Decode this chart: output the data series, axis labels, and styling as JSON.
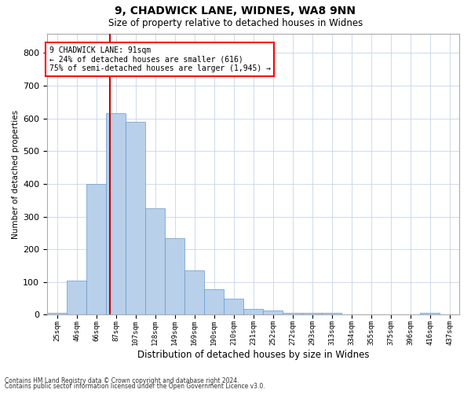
{
  "title1": "9, CHADWICK LANE, WIDNES, WA8 9NN",
  "title2": "Size of property relative to detached houses in Widnes",
  "xlabel": "Distribution of detached houses by size in Widnes",
  "ylabel": "Number of detached properties",
  "footnote1": "Contains HM Land Registry data © Crown copyright and database right 2024.",
  "footnote2": "Contains public sector information licensed under the Open Government Licence v3.0.",
  "annotation_line1": "9 CHADWICK LANE: 91sqm",
  "annotation_line2": "← 24% of detached houses are smaller (616)",
  "annotation_line3": "75% of semi-detached houses are larger (1,945) →",
  "bar_labels": [
    "25sqm",
    "46sqm",
    "66sqm",
    "87sqm",
    "107sqm",
    "128sqm",
    "149sqm",
    "169sqm",
    "190sqm",
    "210sqm",
    "231sqm",
    "252sqm",
    "272sqm",
    "293sqm",
    "313sqm",
    "334sqm",
    "355sqm",
    "375sqm",
    "396sqm",
    "416sqm",
    "437sqm"
  ],
  "bar_heights": [
    5,
    105,
    400,
    615,
    590,
    325,
    235,
    135,
    78,
    50,
    18,
    13,
    5,
    5,
    5,
    0,
    0,
    0,
    0,
    5,
    0
  ],
  "bar_color": "#b8d0ea",
  "bar_edge_color": "#6699cc",
  "vline_color": "#cc0000",
  "ylim": [
    0,
    860
  ],
  "yticks": [
    0,
    100,
    200,
    300,
    400,
    500,
    600,
    700,
    800
  ],
  "background_color": "#ffffff",
  "grid_color": "#c8d4e8"
}
